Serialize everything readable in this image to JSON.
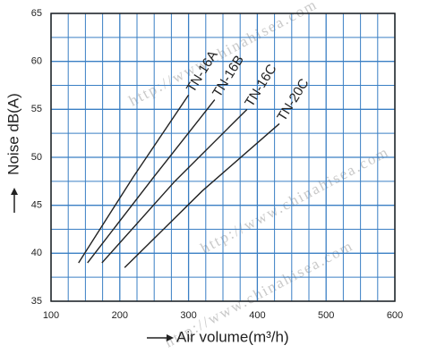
{
  "chart_data": {
    "type": "line",
    "x_label": "Air volume(m³/h)",
    "y_label": "Noise dB(A)",
    "watermark": "http://www.chinahisea.com",
    "xlim": [
      100,
      600
    ],
    "xticks": [
      100,
      200,
      300,
      400,
      500,
      600
    ],
    "ylim": [
      35,
      65
    ],
    "yticks": [
      35,
      40,
      45,
      50,
      55,
      60,
      65
    ],
    "grid": true,
    "grid_subdivisions": {
      "x": 4,
      "y": 2
    },
    "grid_color": "#3a7fc4",
    "series": [
      {
        "name": "TN-16A",
        "color": "#222222",
        "x": [
          140,
          220,
          300
        ],
        "values": [
          39,
          48,
          56.5
        ]
      },
      {
        "name": "TN-16B",
        "color": "#222222",
        "x": [
          153,
          250,
          338
        ],
        "values": [
          39,
          48,
          56
        ]
      },
      {
        "name": "TN-16C",
        "color": "#222222",
        "x": [
          174,
          280,
          385
        ],
        "values": [
          39,
          47.5,
          55
        ]
      },
      {
        "name": "TN-20C",
        "color": "#222222",
        "x": [
          207,
          320,
          432
        ],
        "values": [
          38.5,
          46.5,
          53.5
        ]
      }
    ]
  }
}
